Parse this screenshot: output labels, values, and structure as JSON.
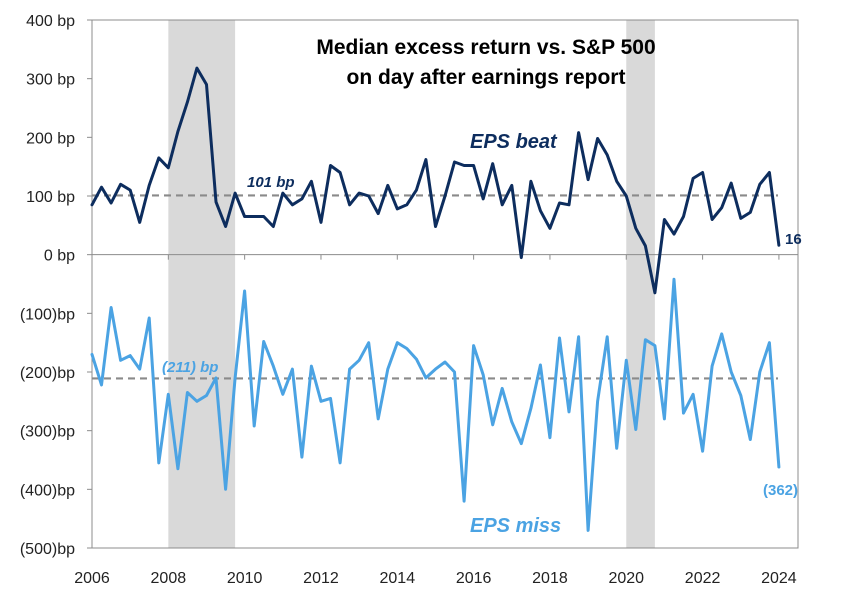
{
  "chart_data": {
    "type": "line",
    "title_lines": [
      "Median excess return vs. S&P 500",
      "on day after earnings report"
    ],
    "xlabel": "",
    "ylabel": "",
    "xlim": [
      2006,
      2024.5
    ],
    "ylim": [
      -500,
      400
    ],
    "x_ticks": [
      {
        "value": 2006,
        "label": "2006"
      },
      {
        "value": 2008,
        "label": "2008"
      },
      {
        "value": 2010,
        "label": "2010"
      },
      {
        "value": 2012,
        "label": "2012"
      },
      {
        "value": 2014,
        "label": "2014"
      },
      {
        "value": 2016,
        "label": "2016"
      },
      {
        "value": 2018,
        "label": "2018"
      },
      {
        "value": 2020,
        "label": "2020"
      },
      {
        "value": 2022,
        "label": "2022"
      },
      {
        "value": 2024,
        "label": "2024"
      }
    ],
    "y_ticks": [
      {
        "value": 400,
        "label": "400 bp"
      },
      {
        "value": 300,
        "label": "300 bp"
      },
      {
        "value": 200,
        "label": "200 bp"
      },
      {
        "value": 100,
        "label": "100 bp"
      },
      {
        "value": 0,
        "label": "0 bp"
      },
      {
        "value": -100,
        "label": "(100)bp"
      },
      {
        "value": -200,
        "label": "(200)bp"
      },
      {
        "value": -300,
        "label": "(300)bp"
      },
      {
        "value": -400,
        "label": "(400)bp"
      },
      {
        "value": -500,
        "label": "(500)bp"
      }
    ],
    "recession_shading": [
      [
        2008.0,
        2009.75
      ],
      [
        2020.0,
        2020.75
      ]
    ],
    "series": [
      {
        "name": "EPS beat",
        "color": "#0d2d5e",
        "average": 101,
        "average_label": "101 bp",
        "end_label": "16",
        "points": [
          [
            2006.0,
            85
          ],
          [
            2006.25,
            115
          ],
          [
            2006.5,
            88
          ],
          [
            2006.75,
            120
          ],
          [
            2007.0,
            110
          ],
          [
            2007.25,
            55
          ],
          [
            2007.5,
            118
          ],
          [
            2007.75,
            165
          ],
          [
            2008.0,
            148
          ],
          [
            2008.25,
            210
          ],
          [
            2008.5,
            260
          ],
          [
            2008.75,
            318
          ],
          [
            2009.0,
            290
          ],
          [
            2009.25,
            90
          ],
          [
            2009.5,
            48
          ],
          [
            2009.75,
            105
          ],
          [
            2010.0,
            65
          ],
          [
            2010.25,
            65
          ],
          [
            2010.5,
            65
          ],
          [
            2010.75,
            48
          ],
          [
            2011.0,
            105
          ],
          [
            2011.25,
            85
          ],
          [
            2011.5,
            95
          ],
          [
            2011.75,
            125
          ],
          [
            2012.0,
            55
          ],
          [
            2012.25,
            152
          ],
          [
            2012.5,
            140
          ],
          [
            2012.75,
            85
          ],
          [
            2013.0,
            105
          ],
          [
            2013.25,
            100
          ],
          [
            2013.5,
            70
          ],
          [
            2013.75,
            118
          ],
          [
            2014.0,
            78
          ],
          [
            2014.25,
            85
          ],
          [
            2014.5,
            110
          ],
          [
            2014.75,
            162
          ],
          [
            2015.0,
            48
          ],
          [
            2015.25,
            100
          ],
          [
            2015.5,
            158
          ],
          [
            2015.75,
            152
          ],
          [
            2016.0,
            152
          ],
          [
            2016.25,
            95
          ],
          [
            2016.5,
            155
          ],
          [
            2016.75,
            85
          ],
          [
            2017.0,
            118
          ],
          [
            2017.25,
            -5
          ],
          [
            2017.5,
            125
          ],
          [
            2017.75,
            75
          ],
          [
            2018.0,
            45
          ],
          [
            2018.25,
            88
          ],
          [
            2018.5,
            85
          ],
          [
            2018.75,
            208
          ],
          [
            2019.0,
            128
          ],
          [
            2019.25,
            198
          ],
          [
            2019.5,
            170
          ],
          [
            2019.75,
            125
          ],
          [
            2020.0,
            100
          ],
          [
            2020.25,
            45
          ],
          [
            2020.5,
            15
          ],
          [
            2020.75,
            -65
          ],
          [
            2021.0,
            60
          ],
          [
            2021.25,
            35
          ],
          [
            2021.5,
            65
          ],
          [
            2021.75,
            130
          ],
          [
            2022.0,
            140
          ],
          [
            2022.25,
            60
          ],
          [
            2022.5,
            80
          ],
          [
            2022.75,
            122
          ],
          [
            2023.0,
            62
          ],
          [
            2023.25,
            72
          ],
          [
            2023.5,
            120
          ],
          [
            2023.75,
            140
          ],
          [
            2024.0,
            16
          ]
        ]
      },
      {
        "name": "EPS miss",
        "color": "#4ba3e3",
        "average": -211,
        "average_label": "(211) bp",
        "end_label": "(362)",
        "points": [
          [
            2006.0,
            -170
          ],
          [
            2006.25,
            -222
          ],
          [
            2006.5,
            -90
          ],
          [
            2006.75,
            -180
          ],
          [
            2007.0,
            -172
          ],
          [
            2007.25,
            -195
          ],
          [
            2007.5,
            -108
          ],
          [
            2007.75,
            -355
          ],
          [
            2008.0,
            -238
          ],
          [
            2008.25,
            -365
          ],
          [
            2008.5,
            -235
          ],
          [
            2008.75,
            -250
          ],
          [
            2009.0,
            -240
          ],
          [
            2009.25,
            -210
          ],
          [
            2009.5,
            -400
          ],
          [
            2009.75,
            -210
          ],
          [
            2010.0,
            -62
          ],
          [
            2010.25,
            -292
          ],
          [
            2010.5,
            -148
          ],
          [
            2010.75,
            -190
          ],
          [
            2011.0,
            -238
          ],
          [
            2011.25,
            -195
          ],
          [
            2011.5,
            -345
          ],
          [
            2011.75,
            -190
          ],
          [
            2012.0,
            -250
          ],
          [
            2012.25,
            -245
          ],
          [
            2012.5,
            -355
          ],
          [
            2012.75,
            -195
          ],
          [
            2013.0,
            -180
          ],
          [
            2013.25,
            -150
          ],
          [
            2013.5,
            -280
          ],
          [
            2013.75,
            -195
          ],
          [
            2014.0,
            -150
          ],
          [
            2014.25,
            -160
          ],
          [
            2014.5,
            -178
          ],
          [
            2014.75,
            -210
          ],
          [
            2015.0,
            -195
          ],
          [
            2015.25,
            -183
          ],
          [
            2015.5,
            -200
          ],
          [
            2015.75,
            -420
          ],
          [
            2016.0,
            -155
          ],
          [
            2016.25,
            -205
          ],
          [
            2016.5,
            -290
          ],
          [
            2016.75,
            -228
          ],
          [
            2017.0,
            -285
          ],
          [
            2017.25,
            -322
          ],
          [
            2017.5,
            -262
          ],
          [
            2017.75,
            -188
          ],
          [
            2018.0,
            -312
          ],
          [
            2018.25,
            -142
          ],
          [
            2018.5,
            -268
          ],
          [
            2018.75,
            -140
          ],
          [
            2019.0,
            -470
          ],
          [
            2019.25,
            -250
          ],
          [
            2019.5,
            -140
          ],
          [
            2019.75,
            -330
          ],
          [
            2020.0,
            -180
          ],
          [
            2020.25,
            -298
          ],
          [
            2020.5,
            -145
          ],
          [
            2020.75,
            -155
          ],
          [
            2021.0,
            -280
          ],
          [
            2021.25,
            -42
          ],
          [
            2021.5,
            -270
          ],
          [
            2021.75,
            -238
          ],
          [
            2022.0,
            -335
          ],
          [
            2022.25,
            -190
          ],
          [
            2022.5,
            -135
          ],
          [
            2022.75,
            -200
          ],
          [
            2023.0,
            -240
          ],
          [
            2023.25,
            -315
          ],
          [
            2023.5,
            -200
          ],
          [
            2023.75,
            -150
          ],
          [
            2024.0,
            -362
          ]
        ]
      }
    ]
  }
}
